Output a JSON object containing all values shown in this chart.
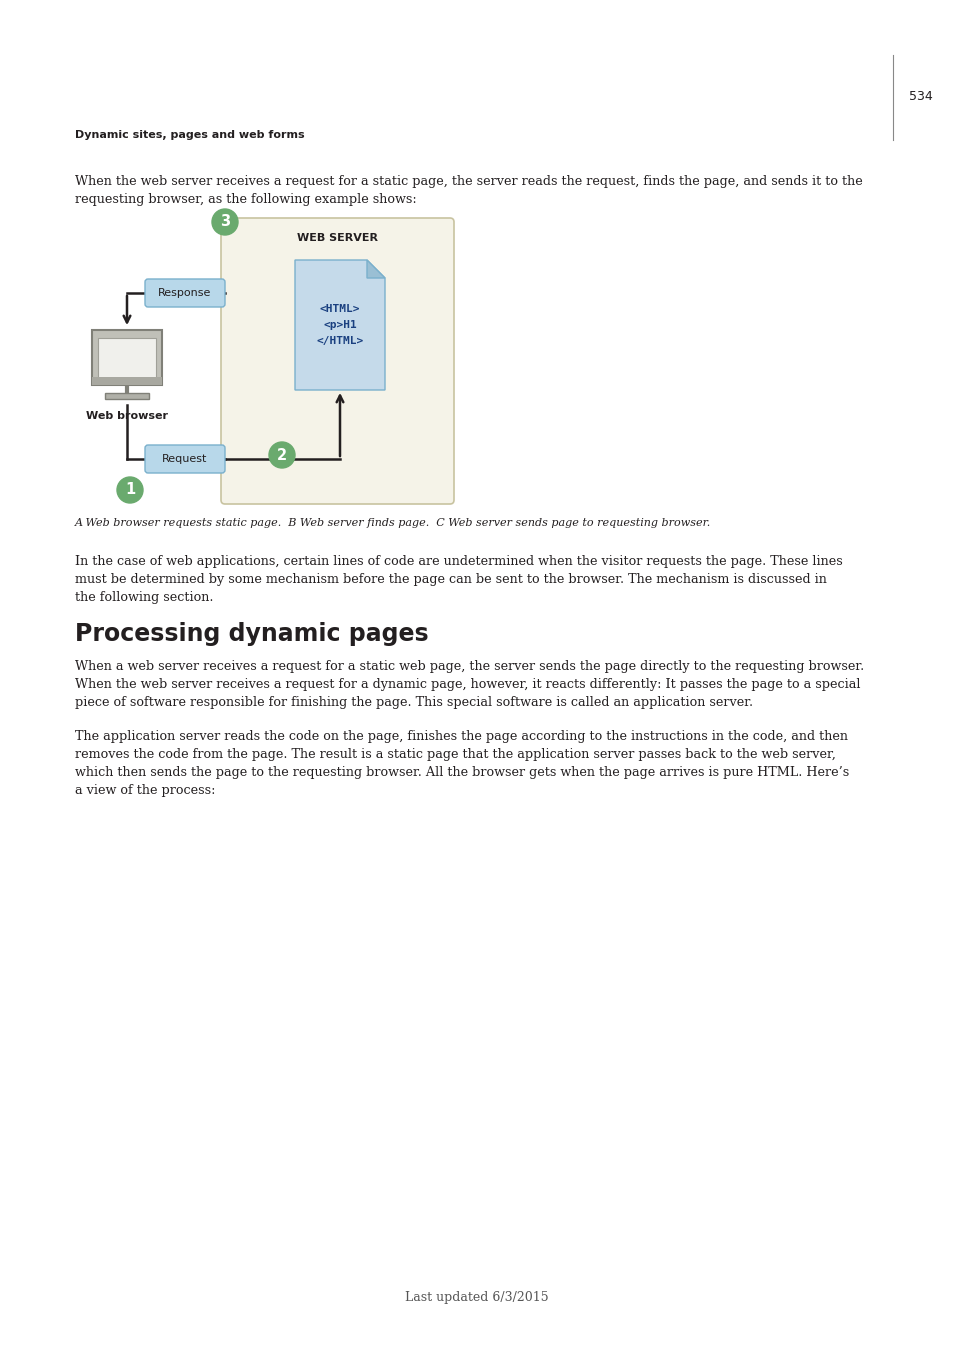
{
  "page_number": "534",
  "header_text": "Dynamic sites, pages and web forms",
  "body_text_1a": "When the web server receives a request for a static page, the server reads the request, finds the page, and sends it to the",
  "body_text_1b": "requesting browser, as the following example shows:",
  "caption_text": "A Web browser requests static page.  B Web server finds page.  C Web server sends page to requesting browser.",
  "body_text_2a": "In the case of web applications, certain lines of code are undetermined when the visitor requests the page. These lines",
  "body_text_2b": "must be determined by some mechanism before the page can be sent to the browser. The mechanism is discussed in",
  "body_text_2c": "the following section.",
  "section_title": "Processing dynamic pages",
  "body_text_3a": "When a web server receives a request for a static web page, the server sends the page directly to the requesting browser.",
  "body_text_3b": "When the web server receives a request for a dynamic page, however, it reacts differently: It passes the page to a special",
  "body_text_3c": "piece of software responsible for finishing the page. This special software is called an application server.",
  "body_text_4a": "The application server reads the code on the page, finishes the page according to the instructions in the code, and then",
  "body_text_4b": "removes the code from the page. The result is a static page that the application server passes back to the web server,",
  "body_text_4c": "which then sends the page to the requesting browser. All the browser gets when the page arrives is pure HTML. Here’s",
  "body_text_4d": "a view of the process:",
  "footer_text": "Last updated 6/3/2015",
  "bg_color": "#ffffff",
  "text_color": "#231f20",
  "web_server_bg": "#f5f3e8",
  "web_server_border": "#c8c3a0",
  "box_color": "#b8d8ea",
  "box_border": "#7ab0cc",
  "file_color": "#c5daea",
  "file_fold_color": "#9abfd4",
  "circle_color": "#6aaa6e",
  "circle_text_color": "#ffffff",
  "line_color": "#231f20",
  "page_line_color": "#888888",
  "monitor_body": "#c0c0b8",
  "monitor_screen": "#e8e8e8",
  "monitor_base": "#b0b0a8"
}
